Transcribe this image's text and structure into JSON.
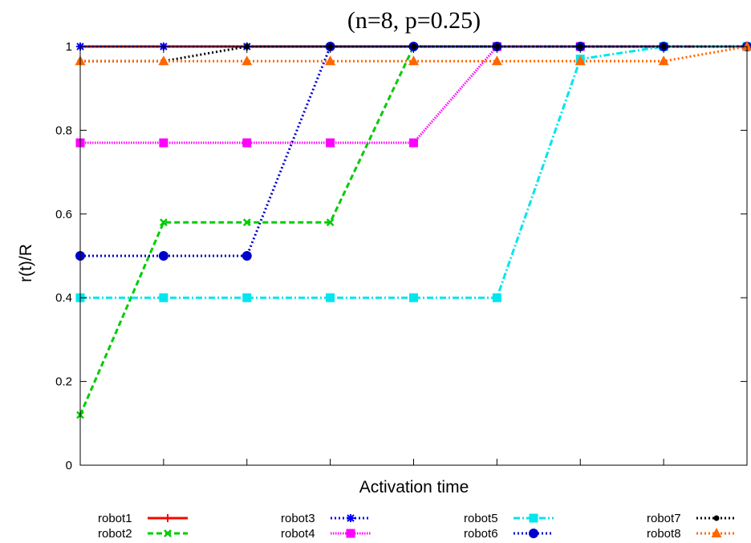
{
  "chart_data": {
    "type": "line",
    "title": "(n=8, p=0.25)",
    "xlabel": "Activation time",
    "ylabel": "r(t)/R",
    "x": [
      0,
      1,
      2,
      3,
      4,
      5,
      6,
      7,
      8
    ],
    "xlim": [
      0,
      8
    ],
    "ylim": [
      0,
      1
    ],
    "yticks": [
      0,
      0.2,
      0.4,
      0.6,
      0.8,
      1
    ],
    "ytick_labels": [
      "0",
      "0.2",
      "0.4",
      "0.6",
      "0.8",
      "1"
    ],
    "grid": false,
    "legend_position": "bottom",
    "series": [
      {
        "name": "robot1",
        "values": [
          1,
          1,
          1,
          1,
          1,
          1,
          1,
          1,
          1
        ],
        "color": "#ff0000",
        "dash": "solid",
        "marker": "plus"
      },
      {
        "name": "robot2",
        "values": [
          0.12,
          0.58,
          0.58,
          0.58,
          1,
          1,
          1,
          1,
          1
        ],
        "color": "#00cc00",
        "dash": "dash",
        "marker": "x"
      },
      {
        "name": "robot3",
        "values": [
          1,
          1,
          1,
          1,
          1,
          1,
          1,
          1,
          1
        ],
        "color": "#0000ff",
        "dash": "dot",
        "marker": "star"
      },
      {
        "name": "robot4",
        "values": [
          0.77,
          0.77,
          0.77,
          0.77,
          0.77,
          1,
          1,
          1,
          1
        ],
        "color": "#ff00ff",
        "dash": "finedot",
        "marker": "square"
      },
      {
        "name": "robot5",
        "values": [
          0.4,
          0.4,
          0.4,
          0.4,
          0.4,
          0.4,
          0.97,
          1,
          1
        ],
        "color": "#00e5ee",
        "dash": "dashdot",
        "marker": "square"
      },
      {
        "name": "robot6",
        "values": [
          0.5,
          0.5,
          0.5,
          1,
          1,
          1,
          1,
          1,
          1
        ],
        "color": "#0000cc",
        "dash": "dot",
        "marker": "circle"
      },
      {
        "name": "robot7",
        "values": [
          0.965,
          0.965,
          1,
          1,
          1,
          1,
          1,
          1,
          1
        ],
        "color": "#000000",
        "dash": "dot",
        "marker": "dot"
      },
      {
        "name": "robot8",
        "values": [
          0.965,
          0.965,
          0.965,
          0.965,
          0.965,
          0.965,
          0.965,
          0.965,
          1
        ],
        "color": "#ff6600",
        "dash": "dot",
        "marker": "triangle"
      }
    ]
  }
}
